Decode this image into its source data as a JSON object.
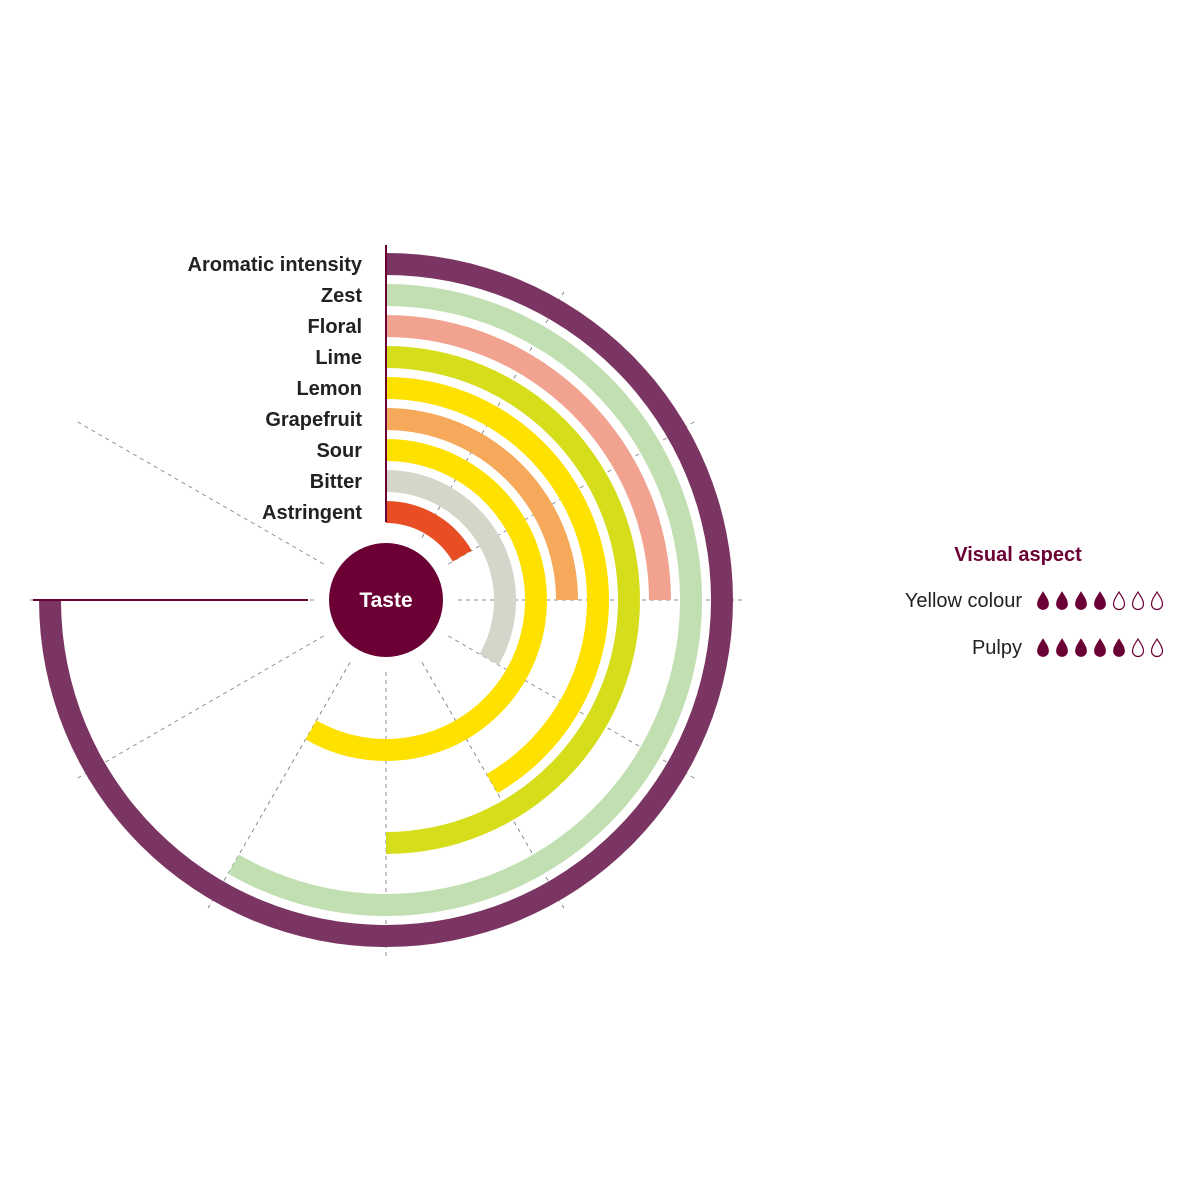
{
  "chart_data": {
    "type": "radial_bar",
    "center_label": "Taste",
    "scale_max": 10,
    "attributes": [
      {
        "name": "Aromatic intensity",
        "value": 9,
        "color": "#7b3562"
      },
      {
        "name": "Zest",
        "value": 7,
        "color": "#c1dfb1"
      },
      {
        "name": "Floral",
        "value": 3,
        "color": "#f2a390"
      },
      {
        "name": "Lime",
        "value": 6,
        "color": "#d6dd1a"
      },
      {
        "name": "Lemon",
        "value": 5,
        "color": "#ffe100"
      },
      {
        "name": "Grapefruit",
        "value": 3,
        "color": "#f6a95b"
      },
      {
        "name": "Sour",
        "value": 7,
        "color": "#ffe100"
      },
      {
        "name": "Bitter",
        "value": 4,
        "color": "#d4d6c9"
      },
      {
        "name": "Astringent",
        "value": 2,
        "color": "#e84e24"
      }
    ]
  },
  "visual_aspect": {
    "title": "Visual aspect",
    "scale_max": 7,
    "items": [
      {
        "label": "Yellow colour",
        "value": 4
      },
      {
        "label": "Pulpy",
        "value": 5
      }
    ]
  },
  "colors": {
    "accent": "#6b0035",
    "drop_filled": "#6b0035",
    "guide_line": "#888888"
  }
}
